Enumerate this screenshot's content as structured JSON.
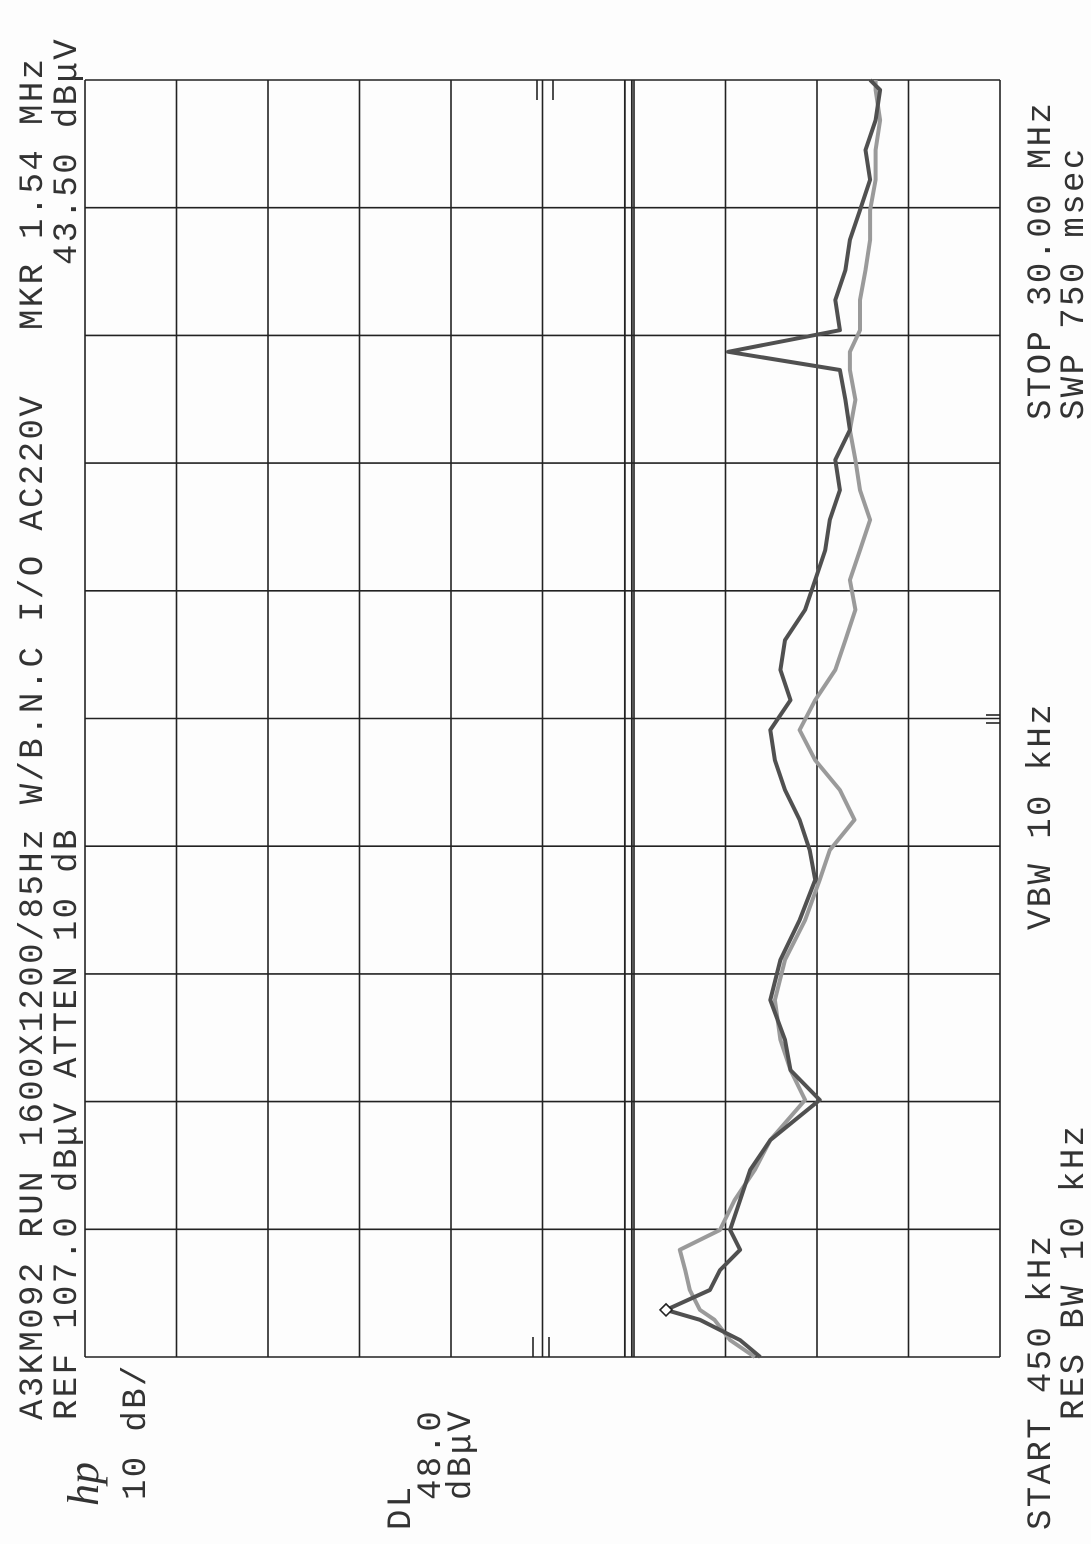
{
  "chart_data": {
    "type": "line",
    "title": "A3KM092 RUN 1600X1200/85Hz W/B.N.C I/O AC220V",
    "logo": "hp",
    "reference": "REF 107.0 dBμV",
    "attenuation": "ATTEN 10 dB",
    "scale": "10 dB/",
    "start": "START 450 kHz",
    "stop": "STOP 30.00 MHz",
    "rbw": "RES BW 10 kHz",
    "vbw": "VBW 10 kHz",
    "sweep": "SWP 750 msec",
    "marker": {
      "label": "MKR",
      "x": 1.54,
      "x_label": "1.54 MHz",
      "value": 43.5,
      "value_label": "43.50 dBμV"
    },
    "display_line": {
      "label": "DL",
      "value": 48,
      "value_label": "48.0",
      "unit": "dBμV"
    },
    "xlim": [
      0.45,
      30
    ],
    "ylim": [
      7,
      107
    ],
    "grid": true,
    "x": [
      0.45,
      0.84,
      1.31,
      1.54,
      2.0,
      2.46,
      2.93,
      3.39,
      4.08,
      4.78,
      5.47,
      6.4,
      7.09,
      7.79,
      8.71,
      9.64,
      10.56,
      11.49,
      12.18,
      12.88,
      13.57,
      14.26,
      14.96,
      15.65,
      16.35,
      17.04,
      17.74,
      18.43,
      19.12,
      19.82,
      20.51,
      21.21,
      21.9,
      22.6,
      23.29,
      23.71,
      24.21,
      24.91,
      25.6,
      26.3,
      26.99,
      27.69,
      28.38,
      29.07,
      29.77,
      30.0
    ],
    "series": [
      {
        "color": "#505050",
        "values": [
          33.2,
          35.4,
          39.8,
          43.5,
          38.7,
          37.6,
          35.4,
          36.5,
          35.4,
          34.3,
          32.1,
          26.7,
          29.9,
          30.5,
          32.1,
          31.0,
          28.9,
          27.2,
          27.8,
          28.9,
          30.5,
          31.6,
          32.1,
          29.9,
          31.0,
          30.5,
          28.3,
          27.2,
          26.1,
          25.6,
          24.5,
          25.0,
          23.4,
          23.9,
          24.5,
          36.7,
          24.5,
          25.0,
          23.9,
          23.4,
          22.3,
          21.2,
          21.7,
          20.6,
          20.1,
          21.2
        ]
      },
      {
        "color": "#9a9a9a",
        "values": [
          33.8,
          36.5,
          38.2,
          39.8,
          40.9,
          41.4,
          42.0,
          37.6,
          36.0,
          33.8,
          32.1,
          28.3,
          29.9,
          31.0,
          31.6,
          30.5,
          28.3,
          26.7,
          25.6,
          22.9,
          24.5,
          27.2,
          28.9,
          27.2,
          25.0,
          23.9,
          22.8,
          23.4,
          22.3,
          21.2,
          22.3,
          22.8,
          23.4,
          22.8,
          23.4,
          23.4,
          22.3,
          22.3,
          21.7,
          21.2,
          21.2,
          20.6,
          20.6,
          20.1,
          20.6,
          20.6
        ]
      }
    ]
  }
}
